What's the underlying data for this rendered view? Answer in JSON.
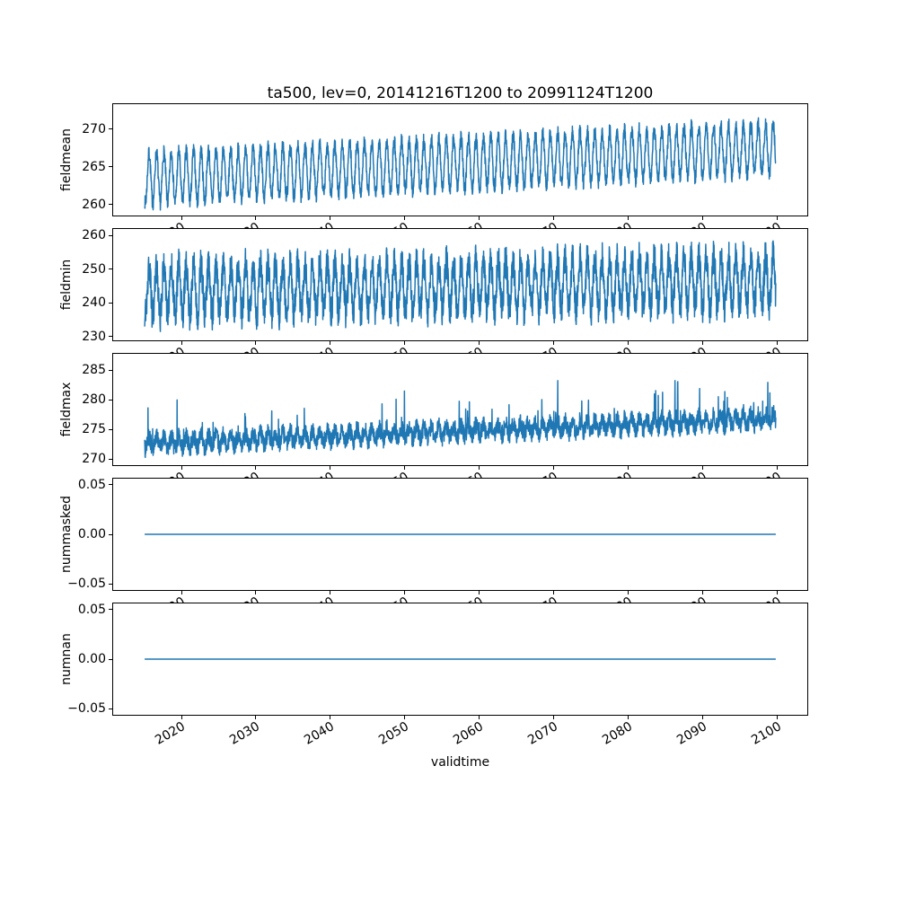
{
  "figure": {
    "title": "ta500, lev=0, 20141216T1200 to 20991124T1200",
    "xlabel": "validtime",
    "background": "#ffffff",
    "line_color": "#1f77b4",
    "axis_color": "#000000"
  },
  "x_axis": {
    "lim": [
      2010.71,
      2104.15
    ],
    "data_start": 2014.96,
    "data_end": 2099.9,
    "ticks": [
      {
        "v": 2020,
        "label": "2020"
      },
      {
        "v": 2030,
        "label": "2030"
      },
      {
        "v": 2040,
        "label": "2040"
      },
      {
        "v": 2050,
        "label": "2050"
      },
      {
        "v": 2060,
        "label": "2060"
      },
      {
        "v": 2070,
        "label": "2070"
      },
      {
        "v": 2080,
        "label": "2080"
      },
      {
        "v": 2090,
        "label": "2090"
      },
      {
        "v": 2100,
        "label": "2100"
      }
    ]
  },
  "chart_data": [
    {
      "type": "line",
      "ylabel": "fieldmean",
      "ylim": [
        258.4,
        273.4
      ],
      "yticks": [
        {
          "v": 260,
          "label": "260"
        },
        {
          "v": 265,
          "label": "265"
        },
        {
          "v": 270,
          "label": "270"
        }
      ],
      "series": {
        "kind": "seasonal",
        "base": 263.4,
        "trend_per_year": 0.048,
        "amplitude": 3.4,
        "noise": 1.0,
        "phase": 0.55,
        "seed": 7,
        "points": 3100
      }
    },
    {
      "type": "line",
      "ylabel": "fieldmin",
      "ylim": [
        228.6,
        262.2
      ],
      "yticks": [
        {
          "v": 230,
          "label": "230"
        },
        {
          "v": 240,
          "label": "240"
        },
        {
          "v": 250,
          "label": "250"
        },
        {
          "v": 260,
          "label": "260"
        }
      ],
      "series": {
        "kind": "seasonal",
        "base": 243.5,
        "trend_per_year": 0.035,
        "amplitude": 7.5,
        "noise": 5.0,
        "phase": 0.55,
        "seed": 19,
        "points": 3100
      }
    },
    {
      "type": "line",
      "ylabel": "fieldmax",
      "ylim": [
        268.8,
        287.9
      ],
      "yticks": [
        {
          "v": 270,
          "label": "270"
        },
        {
          "v": 275,
          "label": "275"
        },
        {
          "v": 280,
          "label": "280"
        },
        {
          "v": 285,
          "label": "285"
        }
      ],
      "series": {
        "kind": "seasonal",
        "base": 272.5,
        "trend_per_year": 0.05,
        "amplitude": 1.0,
        "noise": 1.5,
        "phase": 0.55,
        "seed": 43,
        "points": 3100,
        "spike_probability": 0.035,
        "spike_magnitude": 9
      }
    },
    {
      "type": "line",
      "ylabel": "nummasked",
      "ylim": [
        -0.057,
        0.057
      ],
      "yticks": [
        {
          "v": -0.05,
          "label": "−0.05"
        },
        {
          "v": 0,
          "label": "0.00"
        },
        {
          "v": 0.05,
          "label": "0.05"
        }
      ],
      "series": {
        "kind": "constant",
        "value": 0.0
      }
    },
    {
      "type": "line",
      "ylabel": "numnan",
      "ylim": [
        -0.057,
        0.057
      ],
      "yticks": [
        {
          "v": -0.05,
          "label": "−0.05"
        },
        {
          "v": 0,
          "label": "0.00"
        },
        {
          "v": 0.05,
          "label": "0.05"
        }
      ],
      "series": {
        "kind": "constant",
        "value": 0.0
      }
    }
  ]
}
